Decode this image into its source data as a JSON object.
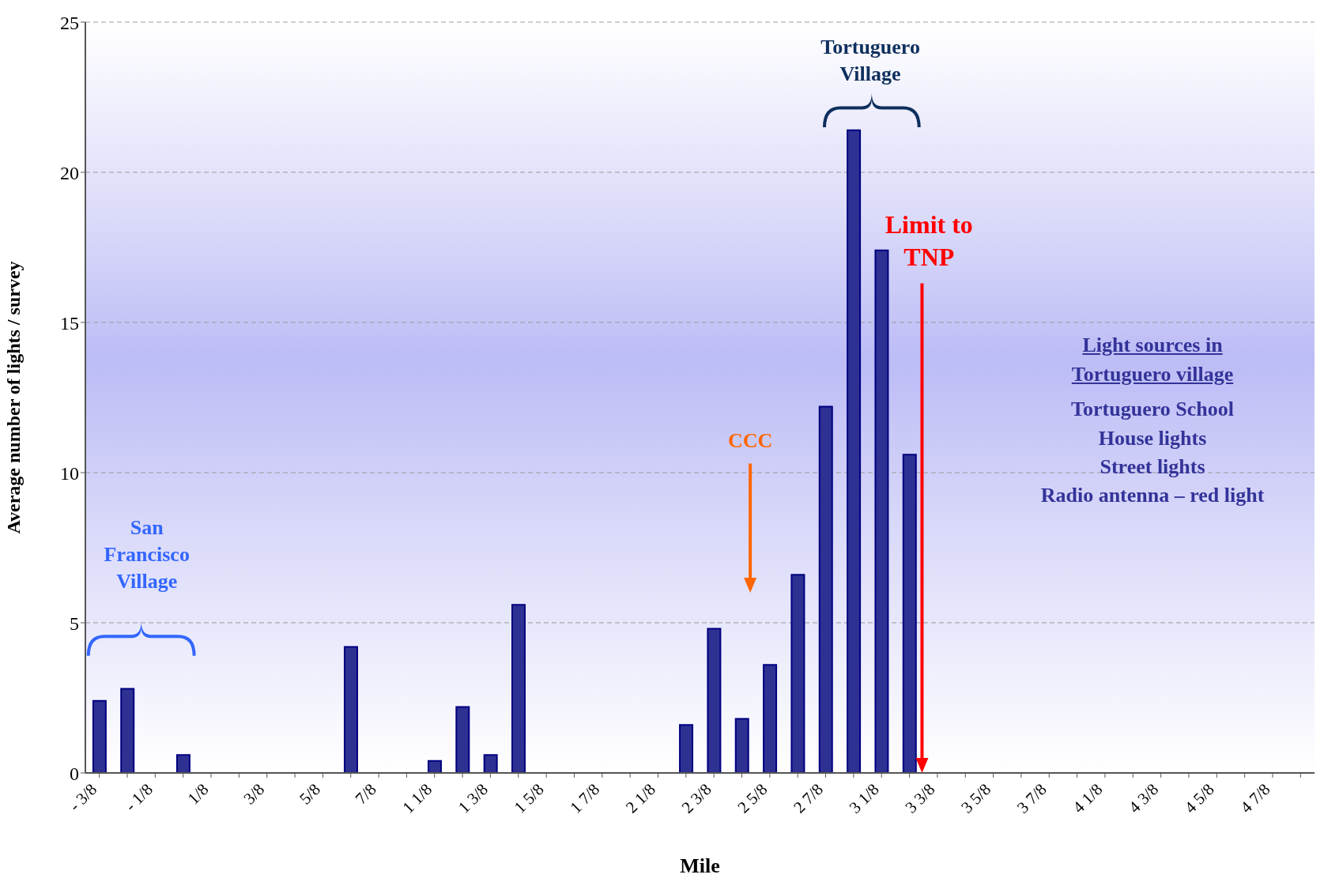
{
  "chart_data": {
    "type": "bar",
    "xlabel": "Mile",
    "ylabel": "Average number of lights / survey",
    "categories": [
      "- 3/8",
      null,
      "- 1/8",
      null,
      "1/8",
      null,
      "3/8",
      null,
      "5/8",
      null,
      "7/8",
      null,
      "1 1/8",
      null,
      "1 3/8",
      null,
      "1 5/8",
      null,
      "1 7/8",
      null,
      "2 1/8",
      null,
      "2 3/8",
      null,
      "2 5/8",
      null,
      "2 7/8",
      null,
      "3 1/8",
      null,
      "3 3/8",
      null,
      "3 5/8",
      null,
      "3 7/8",
      null,
      "4 1/8",
      null,
      "4 3/8",
      null,
      "4 5/8",
      null,
      "4 7/8",
      null
    ],
    "values": [
      2.4,
      2.8,
      null,
      0.6,
      null,
      null,
      null,
      null,
      null,
      4.2,
      null,
      null,
      0.4,
      2.2,
      0.6,
      5.6,
      null,
      null,
      null,
      null,
      null,
      1.6,
      4.8,
      1.8,
      3.6,
      6.6,
      12.2,
      21.4,
      17.4,
      10.6,
      null,
      null,
      null,
      null,
      null,
      null,
      null,
      null,
      null,
      null,
      null,
      null,
      null,
      null
    ],
    "color": "#2e3192",
    "ylim": [
      0,
      25
    ],
    "yticks": [
      0,
      5,
      10,
      15,
      20,
      25
    ],
    "grid": "y",
    "annotations": [
      "San Francisco Village",
      "Tortuguero Village",
      "CCC",
      "Limit to TNP",
      "Light sources in Tortuguero village",
      "Tortuguero School",
      "House lights",
      "Street lights",
      "Radio antenna – red light"
    ]
  }
}
